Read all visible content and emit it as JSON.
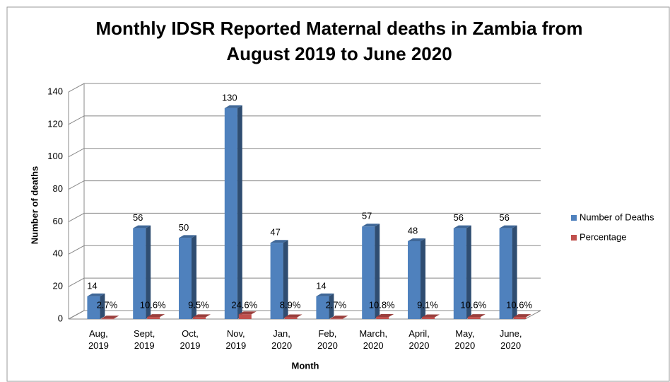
{
  "chart_data": {
    "type": "bar",
    "title": "Monthly IDSR Reported Maternal deaths in Zambia from August 2019 to June 2020",
    "x_label": "Month",
    "y_label": "Number of deaths",
    "categories": [
      [
        "Aug,",
        "2019"
      ],
      [
        "Sept,",
        "2019"
      ],
      [
        "Oct,",
        "2019"
      ],
      [
        "Nov,",
        "2019"
      ],
      [
        "Jan,",
        "2020"
      ],
      [
        "Feb,",
        "2020"
      ],
      [
        "March,",
        "2020"
      ],
      [
        "April,",
        "2020"
      ],
      [
        "May,",
        "2020"
      ],
      [
        "June,",
        "2020"
      ]
    ],
    "series": [
      {
        "name": "Number of Deaths",
        "color": "#4f81bd",
        "values": [
          14,
          56,
          50,
          130,
          47,
          14,
          57,
          48,
          56,
          56
        ]
      },
      {
        "name": "Percentage",
        "color": "#c0504d",
        "values": [
          2.7,
          10.6,
          9.5,
          24.6,
          8.9,
          2.7,
          10.8,
          9.1,
          10.6,
          10.6
        ],
        "value_labels": [
          "2.7%",
          "10.6%",
          "9.5%",
          "24.6%",
          "8.9%",
          "2.7%",
          "10.8%",
          "9.1%",
          "10.6%",
          "10.6%"
        ]
      }
    ],
    "ylim": [
      0,
      140
    ],
    "yticks": [
      0,
      20,
      40,
      60,
      80,
      100,
      120,
      140
    ],
    "grid": true,
    "legend": "right"
  }
}
